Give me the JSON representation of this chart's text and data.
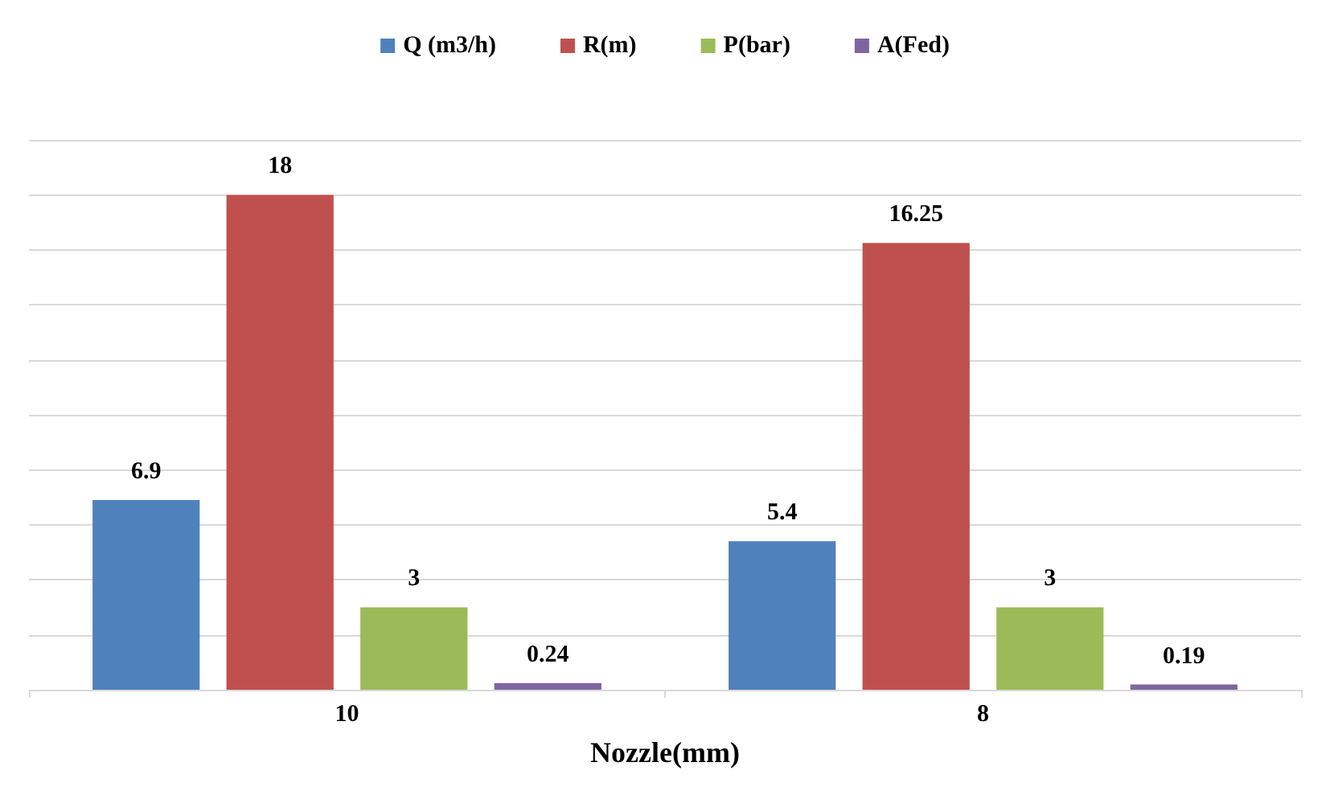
{
  "chart_data": {
    "type": "bar",
    "xlabel": "Nozzle(mm)",
    "categories": [
      "10",
      "8"
    ],
    "series": [
      {
        "name": "Q (m3/h)",
        "color": "#4f81bd",
        "values": [
          6.9,
          5.4
        ]
      },
      {
        "name": "R(m)",
        "color": "#c0504d",
        "values": [
          18,
          16.25
        ]
      },
      {
        "name": "P(bar)",
        "color": "#9bbb59",
        "values": [
          3,
          3
        ]
      },
      {
        "name": "A(Fed)",
        "color": "#8064a2",
        "values": [
          0.24,
          0.19
        ]
      }
    ],
    "ylim": [
      0,
      20
    ],
    "yticks": [
      0,
      2,
      4,
      6,
      8,
      10,
      12,
      14,
      16,
      18,
      20
    ],
    "grid": "y",
    "legend": "top",
    "tick_labels": "x",
    "data_labels": true
  }
}
